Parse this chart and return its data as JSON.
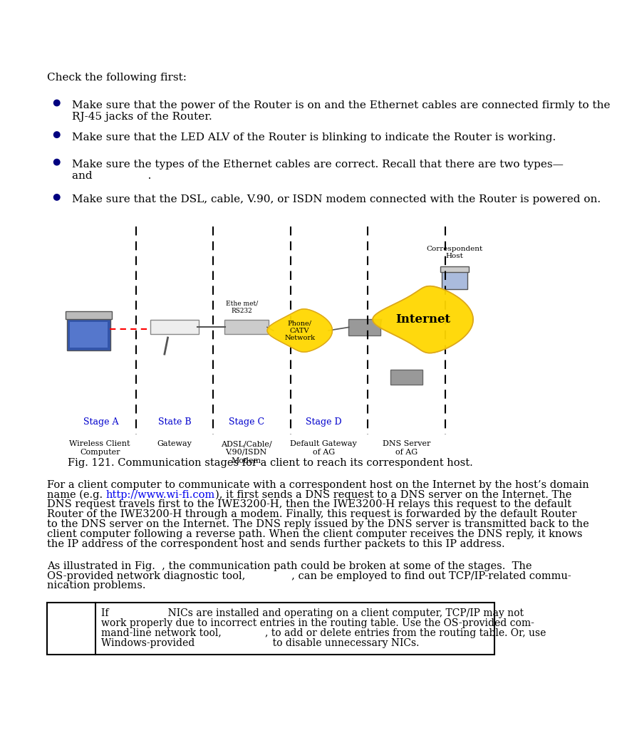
{
  "bg_color": "#ffffff",
  "check_first_text": "Check the following first:",
  "bullets": [
    "Make sure that the power of the Router is on and the Ethernet cables are connected firmly to the\nRJ-45 jacks of the Router.",
    "Make sure that the LED ALV of the Router is blinking to indicate the Router is working.",
    "Make sure the types of the Ethernet cables are correct. Recall that there are two types—\nand                .",
    "Make sure that the DSL, cable, V.90, or ISDN modem connected with the Router is powered on."
  ],
  "bullet_color": "#000080",
  "text_color": "#000000",
  "fig_caption": "Fig. 121. Communication stages for a client to reach its correspondent host.",
  "para1_lines": [
    "For a client computer to communicate with a correspondent host on the Internet by the host’s domain",
    "name (e.g. http://www.wi-fi.com), it first sends a DNS request to a DNS server on the Internet. The",
    "DNS request travels first to the IWE3200-H, then the IWE3200-H relays this request to the default",
    "Router of the IWE3200-H through a modem. Finally, this request is forwarded by the default Router",
    "to the DNS server on the Internet. The DNS reply issued by the DNS server is transmitted back to the",
    "client computer following a reverse path. When the client computer receives the DNS reply, it knows",
    "the IP address of the correspondent host and sends further packets to this IP address."
  ],
  "para2_lines": [
    "As illustrated in Fig.  , the communication path could be broken at some of the stages.  The",
    "OS-provided network diagnostic tool,              , can be employed to find out TCP/IP-related commu-",
    "nication problems."
  ],
  "note_lines": [
    "If                   NICs are installed and operating on a client computer, TCP/IP may not",
    "work properly due to incorrect entries in the routing table. Use the OS-provided com-",
    "mand-line network tool,              , to add or delete entries from the routing table. Or, use",
    "Windows-provided                         to disable unnecessary NICs."
  ],
  "stage_labels": [
    "Stage A",
    "State B",
    "Stage C",
    "Stage D"
  ],
  "device_labels": [
    "Wireless Client\nComputer",
    "Gateway",
    "ADSL/Cable/\nV.90/ISDN\nModem",
    "Default Gateway\nof AG",
    "DNS Server\nof AG"
  ],
  "stage_color": "#0000cd",
  "internet_color": "#FFD700",
  "correspondent_label": "Correspondent\nHost",
  "link_color": "#0000EE"
}
